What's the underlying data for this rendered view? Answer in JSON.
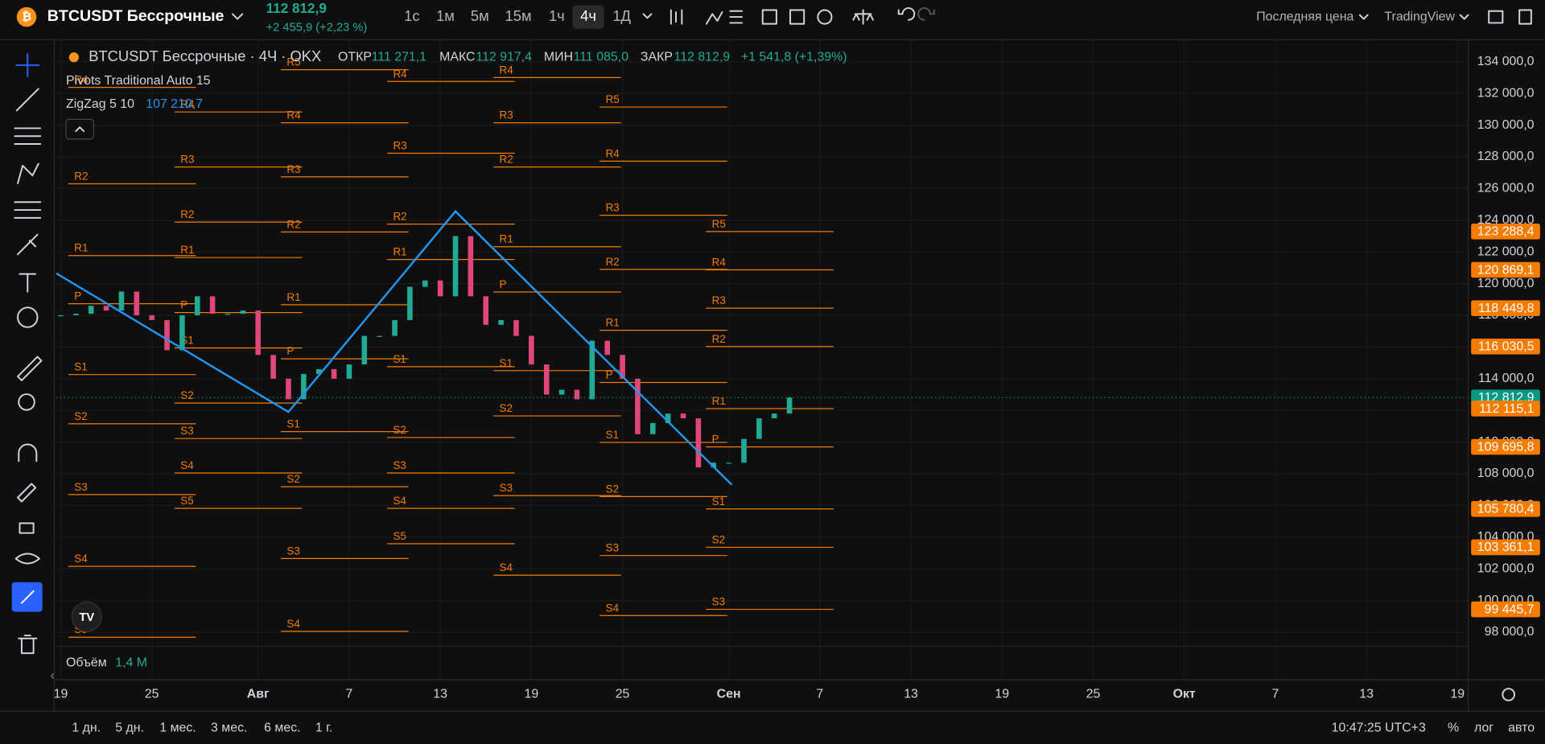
{
  "header": {
    "symbol": "BTCUSDT Бессрочные",
    "price": "112 812,9",
    "change": "+2 455,9 (+2,23 %)",
    "timeframes": [
      "1с",
      "1м",
      "5м",
      "15м",
      "1ч",
      "4ч",
      "1Д"
    ],
    "selected_timeframe": 5,
    "price_type": "Последняя цена",
    "brand": "TradingView"
  },
  "legend": {
    "symbol": "BTCUSDT Бессрочные · 4Ч · OKX",
    "ohlc": [
      {
        "label": "ОТКР",
        "value": "111 271,1"
      },
      {
        "label": "МАКС",
        "value": "112 917,4"
      },
      {
        "label": "МИН",
        "value": "111 085,0"
      },
      {
        "label": "ЗАКР",
        "value": "112 812,9"
      }
    ],
    "change": "+1 541,8 (+1,39%)",
    "pivots": "Pivots Traditional Auto 15",
    "zigzag": "ZigZag 5 10",
    "zigzag_value": "107 210,7",
    "volume_label": "Объём",
    "volume_value": "1,4 M"
  },
  "chart_data": {
    "type": "candlestick",
    "up_color": "#22ab94",
    "down_color": "#e0467a",
    "x": [
      200,
      201,
      202,
      203,
      204,
      205,
      206,
      207,
      208,
      209,
      210,
      211,
      212,
      213,
      214,
      215,
      216,
      217,
      218,
      219,
      220,
      221,
      222,
      223,
      224,
      225,
      226,
      227,
      228,
      229,
      230,
      231,
      232,
      233,
      234,
      235,
      236,
      237,
      238,
      239,
      240,
      241,
      242,
      243,
      244,
      245,
      246,
      247,
      248
    ],
    "values": [
      118000,
      118100,
      118600,
      118300,
      119500,
      118000,
      117700,
      115800,
      118000,
      119200,
      118100,
      118100,
      118300,
      115500,
      114000,
      112700,
      114300,
      114600,
      114000,
      114900,
      116700,
      116700,
      117700,
      119800,
      120200,
      119200,
      123000,
      119200,
      117400,
      117700,
      116700,
      114900,
      113000,
      113300,
      112700,
      116400,
      115500,
      114000,
      110500,
      111200,
      111800,
      111500,
      108400,
      108700,
      108700,
      110200,
      111500,
      111800,
      112812.9
    ],
    "xlim": [
      199.7,
      292.7
    ],
    "ylim": [
      95000,
      135400
    ],
    "xticks": [
      {
        "value": 200,
        "label": "19"
      },
      {
        "value": 206,
        "label": "25"
      },
      {
        "value": 213,
        "label": "Авг"
      },
      {
        "value": 219,
        "label": "7"
      },
      {
        "value": 225,
        "label": "13"
      },
      {
        "value": 231,
        "label": "19"
      },
      {
        "value": 237,
        "label": "25"
      },
      {
        "value": 244,
        "label": "Сен"
      },
      {
        "value": 250,
        "label": "7"
      },
      {
        "value": 256,
        "label": "13"
      },
      {
        "value": 262,
        "label": "19"
      },
      {
        "value": 268,
        "label": "25"
      },
      {
        "value": 274,
        "label": "Окт"
      },
      {
        "value": 280,
        "label": "7"
      },
      {
        "value": 286,
        "label": "13"
      },
      {
        "value": 292,
        "label": "19"
      }
    ],
    "yticks": [
      {
        "value": 98000,
        "label": "98 000,0"
      },
      {
        "value": 100000,
        "label": "100 000,0"
      },
      {
        "value": 102000,
        "label": "102 000,0"
      },
      {
        "value": 104000,
        "label": "104 000,0"
      },
      {
        "value": 106000,
        "label": "106 000,0"
      },
      {
        "value": 108000,
        "label": "108 000,0"
      },
      {
        "value": 110000,
        "label": "110 000,0"
      },
      {
        "value": 112000,
        "label": "112 000,0"
      },
      {
        "value": 114000,
        "label": "114 000,0"
      },
      {
        "value": 116000,
        "label": "116 000,0"
      },
      {
        "value": 118000,
        "label": "118 000,0"
      },
      {
        "value": 120000,
        "label": "120 000,0"
      },
      {
        "value": 122000,
        "label": "122 000,0"
      },
      {
        "value": 124000,
        "label": "124 000,0"
      },
      {
        "value": 126000,
        "label": "126 000,0"
      },
      {
        "value": 128000,
        "label": "128 000,0"
      },
      {
        "value": 130000,
        "label": "130 000,0"
      },
      {
        "value": 132000,
        "label": "132 000,0"
      },
      {
        "value": 134000,
        "label": "134 000,0"
      }
    ],
    "grid": true,
    "pivot_color": "#f57c00",
    "pivots": [
      {
        "start": 200.5,
        "levels": [
          {
            "name": "R4",
            "value": 132386
          },
          {
            "name": "R2",
            "value": 126303
          },
          {
            "name": "R1",
            "value": 121771
          },
          {
            "name": "P",
            "value": 118730
          },
          {
            "name": "S1",
            "value": 114261
          },
          {
            "name": "S2",
            "value": 111157
          },
          {
            "name": "S3",
            "value": 106688
          },
          {
            "name": "S4",
            "value": 102157
          },
          {
            "name": "S5",
            "value": 97687
          }
        ]
      },
      {
        "start": 207.5,
        "levels": [
          {
            "name": "R4",
            "value": 130834
          },
          {
            "name": "R3",
            "value": 127358
          },
          {
            "name": "R2",
            "value": 123882
          },
          {
            "name": "R1",
            "value": 121647
          },
          {
            "name": "P",
            "value": 118171
          },
          {
            "name": "S1",
            "value": 115937
          },
          {
            "name": "S2",
            "value": 112461
          },
          {
            "name": "S3",
            "value": 110226
          },
          {
            "name": "S4",
            "value": 108054
          },
          {
            "name": "S5",
            "value": 105820
          }
        ]
      },
      {
        "start": 214.5,
        "levels": [
          {
            "name": "R5",
            "value": 133503
          },
          {
            "name": "R4",
            "value": 130152
          },
          {
            "name": "R3",
            "value": 126738
          },
          {
            "name": "R2",
            "value": 123262
          },
          {
            "name": "R1",
            "value": 118668
          },
          {
            "name": "P",
            "value": 115255
          },
          {
            "name": "S1",
            "value": 110661
          },
          {
            "name": "S2",
            "value": 107185
          },
          {
            "name": "S3",
            "value": 102654
          },
          {
            "name": "S4",
            "value": 98060
          }
        ]
      },
      {
        "start": 221.5,
        "levels": [
          {
            "name": "R4",
            "value": 132759
          },
          {
            "name": "R3",
            "value": 128227
          },
          {
            "name": "R2",
            "value": 123758
          },
          {
            "name": "R1",
            "value": 121523
          },
          {
            "name": "S1",
            "value": 114758
          },
          {
            "name": "S2",
            "value": 110289
          },
          {
            "name": "S3",
            "value": 108054
          },
          {
            "name": "S4",
            "value": 105820
          },
          {
            "name": "S5",
            "value": 103585
          }
        ]
      },
      {
        "start": 228.5,
        "levels": [
          {
            "name": "R4",
            "value": 133007
          },
          {
            "name": "R3",
            "value": 130152
          },
          {
            "name": "R2",
            "value": 127358
          },
          {
            "name": "R1",
            "value": 122330
          },
          {
            "name": "P",
            "value": 119475
          },
          {
            "name": "S1",
            "value": 114509
          },
          {
            "name": "S2",
            "value": 111654
          },
          {
            "name": "S3",
            "value": 106626
          },
          {
            "name": "S4",
            "value": 101598
          }
        ]
      },
      {
        "start": 235.5,
        "levels": [
          {
            "name": "R5",
            "value": 131145
          },
          {
            "name": "R4",
            "value": 127730
          },
          {
            "name": "R3",
            "value": 124317
          },
          {
            "name": "R2",
            "value": 120903
          },
          {
            "name": "R1",
            "value": 117054
          },
          {
            "name": "P",
            "value": 113765
          },
          {
            "name": "S1",
            "value": 109978
          },
          {
            "name": "S2",
            "value": 106564
          },
          {
            "name": "S3",
            "value": 102840
          },
          {
            "name": "S4",
            "value": 99054
          }
        ]
      },
      {
        "start": 242.5,
        "levels": [
          {
            "name": "R5",
            "value": 123288.4
          },
          {
            "name": "R4",
            "value": 120869.1
          },
          {
            "name": "R3",
            "value": 118449.8
          },
          {
            "name": "R2",
            "value": 116030.5
          },
          {
            "name": "R1",
            "value": 112115.1
          },
          {
            "name": "P",
            "value": 109695.8
          },
          {
            "name": "S1",
            "value": 105780.4
          },
          {
            "name": "S2",
            "value": 103361.1
          },
          {
            "name": "S3",
            "value": 99445.7
          }
        ]
      }
    ],
    "zigzag": {
      "color": "#2196f3",
      "x": [
        199.7,
        215,
        226,
        244.2
      ],
      "values": [
        120654,
        111902,
        124565,
        107308
      ]
    },
    "price_tags": [
      {
        "value": 123288.4,
        "label": "123 288,4",
        "color": "#f57c00"
      },
      {
        "value": 120869.1,
        "label": "120 869,1",
        "color": "#f57c00"
      },
      {
        "value": 118449.8,
        "label": "118 449,8",
        "color": "#f57c00"
      },
      {
        "value": 116030.5,
        "label": "116 030,5",
        "color": "#f57c00"
      },
      {
        "value": 112812.9,
        "label": "112 812,9",
        "color": "#089981"
      },
      {
        "value": 112115.1,
        "label": "112 115,1",
        "color": "#f57c00"
      },
      {
        "value": 109695.8,
        "label": "109 695,8",
        "color": "#f57c00"
      },
      {
        "value": 105780.4,
        "label": "105 780,4",
        "color": "#f57c00"
      },
      {
        "value": 103361.1,
        "label": "103 361,1",
        "color": "#f57c00"
      },
      {
        "value": 99445.7,
        "label": "99 445,7",
        "color": "#f57c00"
      }
    ]
  },
  "footer": {
    "ranges": [
      "1 дн.",
      "5 дн.",
      "1 мес.",
      "3 мес.",
      "6 мес.",
      "1 г."
    ],
    "time": "10:47:25 UTC+3",
    "percent": "%",
    "log": "лог",
    "auto": "авто"
  }
}
